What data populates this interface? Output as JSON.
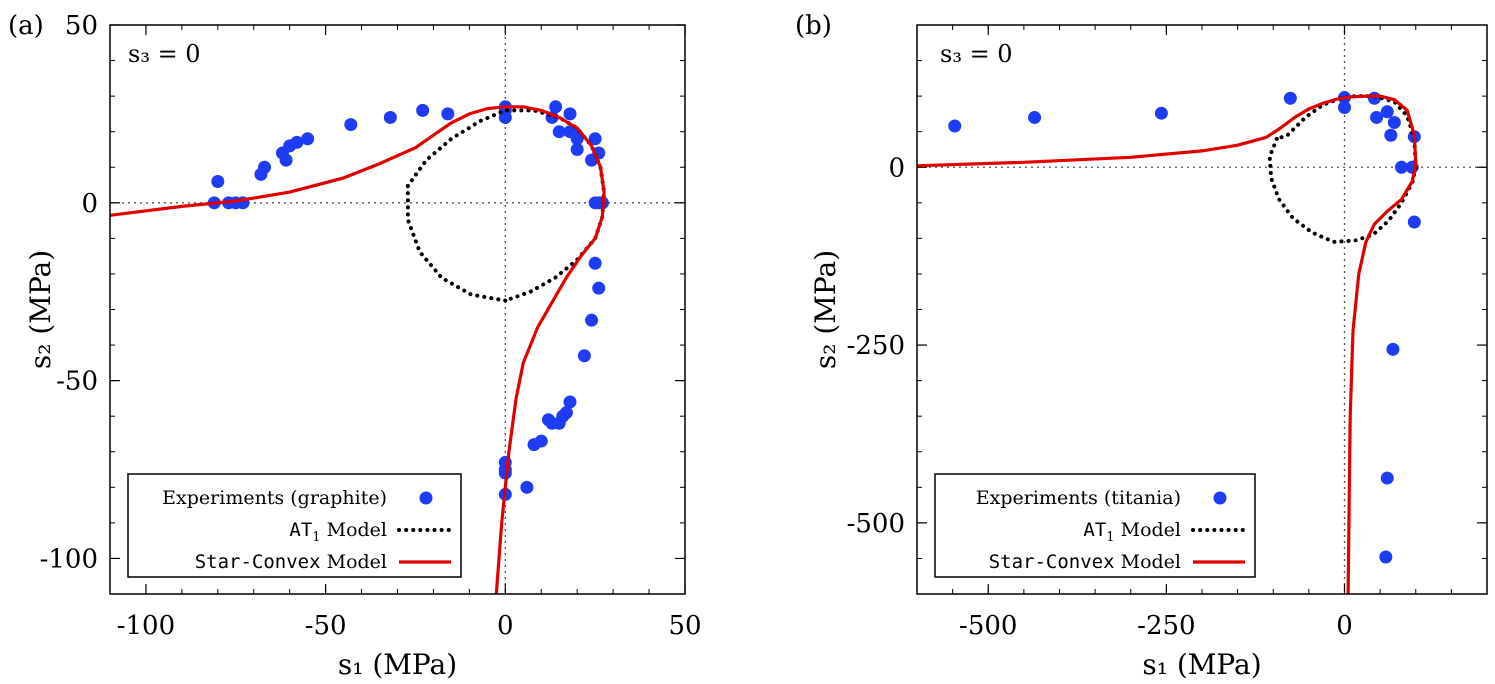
{
  "chart_data": [
    {
      "panel_label": "(a)",
      "type": "scatter",
      "annotation": "s₃ = 0",
      "xlabel": "s₁ (MPa)",
      "ylabel": "s₂ (MPa)",
      "xlim": [
        -110,
        50
      ],
      "ylim": [
        -110,
        50
      ],
      "xticks": [
        -100,
        -50,
        0,
        50
      ],
      "yticks": [
        -100,
        -50,
        0,
        50
      ],
      "xtick_labels": [
        "-100",
        "-50",
        "0",
        "50"
      ],
      "ytick_labels": [
        "-100",
        "-50",
        "0",
        "50"
      ],
      "legend_position": "bottom-left",
      "series": [
        {
          "name": "Experiments (graphite)",
          "kind": "scatter",
          "color": "#1f3cf5",
          "points": [
            [
              -81,
              0
            ],
            [
              -80,
              6
            ],
            [
              -77,
              0
            ],
            [
              -75,
              0
            ],
            [
              -73,
              0
            ],
            [
              -68,
              8
            ],
            [
              -67,
              10
            ],
            [
              -62,
              14
            ],
            [
              -61,
              12
            ],
            [
              -60,
              16
            ],
            [
              -58,
              17
            ],
            [
              -55,
              18
            ],
            [
              -43,
              22
            ],
            [
              -32,
              24
            ],
            [
              -23,
              26
            ],
            [
              -16,
              25
            ],
            [
              0,
              27
            ],
            [
              0,
              26
            ],
            [
              0,
              24
            ],
            [
              13,
              24
            ],
            [
              14,
              27
            ],
            [
              15,
              20
            ],
            [
              18,
              20
            ],
            [
              18,
              25
            ],
            [
              19,
              20
            ],
            [
              20,
              18
            ],
            [
              20,
              15
            ],
            [
              24,
              12
            ],
            [
              25,
              18
            ],
            [
              26,
              14
            ],
            [
              25,
              0
            ],
            [
              26,
              0
            ],
            [
              27,
              0
            ],
            [
              27,
              0
            ],
            [
              25,
              -17
            ],
            [
              26,
              -24
            ],
            [
              24,
              -33
            ],
            [
              22,
              -43
            ],
            [
              18,
              -56
            ],
            [
              17,
              -59
            ],
            [
              16,
              -60
            ],
            [
              15,
              -62
            ],
            [
              13,
              -62
            ],
            [
              12,
              -61
            ],
            [
              10,
              -67
            ],
            [
              8,
              -68
            ],
            [
              6,
              -80
            ],
            [
              0,
              -73
            ],
            [
              0,
              -75
            ],
            [
              0,
              -76
            ],
            [
              0,
              -82
            ]
          ]
        },
        {
          "name": "AT₁ Model",
          "name_mono": "AT",
          "name_sub": "1",
          "name_rest": " Model",
          "kind": "dotted-line",
          "color": "#000000",
          "points": [
            [
              0,
              -27.5
            ],
            [
              -9.5,
              -25.8
            ],
            [
              -17.7,
              -21.1
            ],
            [
              -23.8,
              -13.8
            ],
            [
              -27.1,
              -4.8
            ],
            [
              -27.1,
              4.8
            ],
            [
              -22,
              12
            ],
            [
              -15,
              18
            ],
            [
              -7,
              23
            ],
            [
              0,
              26
            ],
            [
              8,
              26
            ],
            [
              15,
              24
            ],
            [
              20,
              21
            ],
            [
              24,
              16
            ],
            [
              26.5,
              10
            ],
            [
              27.5,
              3
            ],
            [
              27,
              -4
            ],
            [
              25,
              -10
            ],
            [
              20,
              -16
            ],
            [
              14,
              -21
            ],
            [
              7,
              -25
            ],
            [
              0,
              -27.5
            ]
          ]
        },
        {
          "name": "Star-Convex Model",
          "name_mono": "Star-Convex",
          "name_rest": " Model",
          "kind": "line",
          "color": "#e00000",
          "points": [
            [
              -110,
              -3.5
            ],
            [
              -90,
              -1
            ],
            [
              -75,
              0.5
            ],
            [
              -60,
              3
            ],
            [
              -45,
              7
            ],
            [
              -35,
              11
            ],
            [
              -25,
              15.5
            ],
            [
              -20,
              19
            ],
            [
              -15,
              22.5
            ],
            [
              -10,
              25
            ],
            [
              -5,
              26.5
            ],
            [
              0,
              27
            ],
            [
              5,
              27
            ],
            [
              10,
              26
            ],
            [
              15,
              24
            ],
            [
              20,
              21
            ],
            [
              24,
              16
            ],
            [
              26.5,
              10
            ],
            [
              27.5,
              3
            ],
            [
              27,
              -4
            ],
            [
              25,
              -10
            ],
            [
              21,
              -15
            ],
            [
              17,
              -21
            ],
            [
              13,
              -28
            ],
            [
              9,
              -35
            ],
            [
              5,
              -45
            ],
            [
              3,
              -55
            ],
            [
              1,
              -70
            ],
            [
              -1,
              -90
            ],
            [
              -2.5,
              -110
            ]
          ]
        }
      ]
    },
    {
      "panel_label": "(b)",
      "type": "scatter",
      "annotation": "s₃ = 0",
      "xlabel": "s₁ (MPa)",
      "ylabel": "s₂ (MPa)",
      "xlim": [
        -600,
        200
      ],
      "ylim": [
        -600,
        200
      ],
      "xticks": [
        -500,
        -250,
        0
      ],
      "yticks": [
        -500,
        -250,
        0
      ],
      "xtick_labels": [
        "-500",
        "-250",
        "0"
      ],
      "ytick_labels": [
        "-500",
        "-250",
        "0"
      ],
      "legend_position": "bottom-left",
      "series": [
        {
          "name": "Experiments (titania)",
          "kind": "scatter",
          "color": "#1f3cf5",
          "points": [
            [
              -547,
              58
            ],
            [
              -435,
              70
            ],
            [
              -257,
              76
            ],
            [
              -76,
              97
            ],
            [
              0,
              98
            ],
            [
              0,
              84
            ],
            [
              42,
              97
            ],
            [
              45,
              70
            ],
            [
              60,
              78
            ],
            [
              65,
              45
            ],
            [
              70,
              63
            ],
            [
              80,
              0
            ],
            [
              95,
              0
            ],
            [
              98,
              43
            ],
            [
              98,
              -77
            ],
            [
              68,
              -256
            ],
            [
              60,
              -437
            ],
            [
              58,
              -548
            ]
          ]
        },
        {
          "name": "AT₁ Model",
          "name_mono": "AT",
          "name_sub": "1",
          "name_rest": " Model",
          "kind": "dotted-line",
          "color": "#000000",
          "points": [
            [
              -95,
              40
            ],
            [
              -105,
              15
            ],
            [
              -103,
              -15
            ],
            [
              -92,
              -45
            ],
            [
              -72,
              -72
            ],
            [
              -45,
              -92
            ],
            [
              -15,
              -105
            ],
            [
              15,
              -103
            ],
            [
              40,
              -95
            ],
            [
              62,
              -75
            ],
            [
              80,
              -50
            ],
            [
              95,
              -22
            ],
            [
              100,
              0
            ],
            [
              98,
              40
            ],
            [
              88,
              72
            ],
            [
              70,
              92
            ],
            [
              42,
              100
            ],
            [
              15,
              100
            ],
            [
              -5,
              97
            ],
            [
              -30,
              88
            ],
            [
              -55,
              70
            ],
            [
              -80,
              45
            ],
            [
              -95,
              40
            ]
          ]
        },
        {
          "name": "Star-Convex Model",
          "name_mono": "Star-Convex",
          "name_rest": " Model",
          "kind": "line",
          "color": "#e00000",
          "points": [
            [
              -600,
              2
            ],
            [
              -450,
              7
            ],
            [
              -300,
              14
            ],
            [
              -200,
              23
            ],
            [
              -150,
              31
            ],
            [
              -110,
              42
            ],
            [
              -90,
              55
            ],
            [
              -70,
              70
            ],
            [
              -50,
              82
            ],
            [
              -30,
              90
            ],
            [
              -10,
              96
            ],
            [
              10,
              99
            ],
            [
              30,
              100
            ],
            [
              50,
              100
            ],
            [
              70,
              95
            ],
            [
              88,
              80
            ],
            [
              98,
              45
            ],
            [
              100,
              5
            ],
            [
              95,
              -20
            ],
            [
              80,
              -45
            ],
            [
              60,
              -62
            ],
            [
              42,
              -80
            ],
            [
              30,
              -105
            ],
            [
              20,
              -150
            ],
            [
              12,
              -230
            ],
            [
              8,
              -350
            ],
            [
              5,
              -600
            ]
          ]
        }
      ]
    }
  ]
}
